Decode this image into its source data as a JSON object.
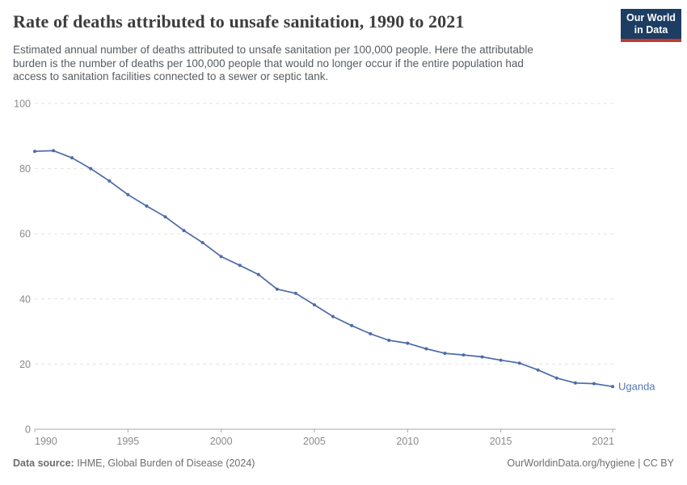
{
  "header": {
    "title": "Rate of deaths attributed to unsafe sanitation, 1990 to 2021",
    "subtitle_lines": [
      "Estimated annual number of deaths attributed to unsafe sanitation per 100,000 people. Here the attributable",
      "burden is the number of deaths per 100,000 people that would no longer occur if the entire population had",
      "access to sanitation facilities connected to a sewer or septic tank."
    ],
    "logo": {
      "line1": "Our World",
      "line2": "in Data",
      "bg_color": "#1d3d63",
      "stripe_color": "#c13a32"
    }
  },
  "footer": {
    "source_label": "Data source:",
    "source_text": " IHME, Global Burden of Disease (2024)",
    "right_text": "OurWorldinData.org/hygiene | CC BY"
  },
  "chart_data": {
    "type": "line",
    "title": "Rate of deaths attributed to unsafe sanitation, 1990 to 2021",
    "xlabel": "",
    "ylabel": "",
    "xlim": [
      1990,
      2021
    ],
    "ylim": [
      0,
      100
    ],
    "grid": true,
    "legend_position": "end-of-line",
    "yticks": [
      0,
      20,
      40,
      60,
      80,
      100
    ],
    "xticks": [
      1990,
      1995,
      2000,
      2005,
      2010,
      2015,
      2021
    ],
    "x": [
      1990,
      1991,
      1992,
      1993,
      1994,
      1995,
      1996,
      1997,
      1998,
      1999,
      2000,
      2001,
      2002,
      2003,
      2004,
      2005,
      2006,
      2007,
      2008,
      2009,
      2010,
      2011,
      2012,
      2013,
      2014,
      2015,
      2016,
      2017,
      2018,
      2019,
      2020,
      2021
    ],
    "series": [
      {
        "name": "Uganda",
        "color": "#4C6CA8",
        "label_color": "#5878ad",
        "values": [
          85.3,
          85.5,
          83.3,
          80.0,
          76.2,
          72.0,
          68.5,
          65.2,
          61.0,
          57.3,
          53.0,
          50.3,
          47.5,
          43.0,
          41.7,
          38.2,
          34.6,
          31.8,
          29.3,
          27.3,
          26.4,
          24.7,
          23.3,
          22.8,
          22.2,
          21.2,
          20.3,
          18.2,
          15.7,
          14.2,
          14.0,
          13.1
        ]
      }
    ],
    "colors": {
      "grid": "#e2e2e2",
      "axis": "#a8a8a8",
      "tick_label": "#8a8a8a"
    }
  }
}
